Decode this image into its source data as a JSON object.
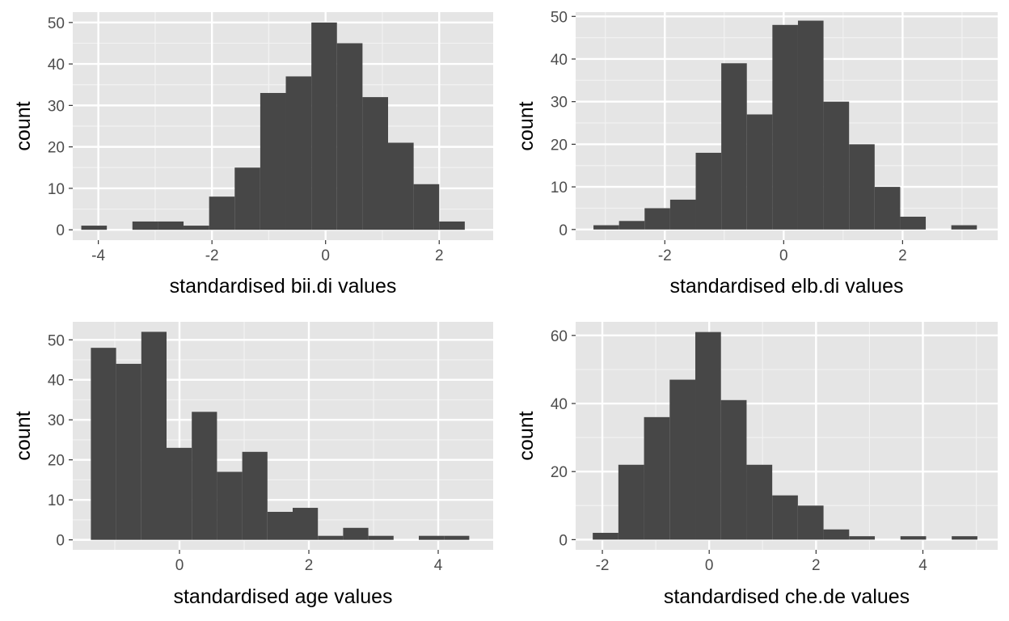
{
  "style": {
    "panel_background": "#e5e5e5",
    "grid_major": "#ffffff",
    "grid_minor": "#f2f2f2",
    "bar_fill": "#474747",
    "tick_color": "#333333",
    "tick_label_color": "#4d4d4d"
  },
  "chart_data": [
    {
      "type": "bar",
      "subtype": "histogram",
      "xlabel": "standardised bii.di values",
      "ylabel": "count",
      "xlim": [
        -4.45,
        2.95
      ],
      "ylim": [
        -2.5,
        52.5
      ],
      "x_ticks": [
        -4,
        -2,
        0,
        2
      ],
      "y_ticks": [
        0,
        10,
        20,
        30,
        40,
        50
      ],
      "bin_width": 0.45,
      "bins": [
        {
          "x0": -4.3,
          "x1": -3.85,
          "count": 1
        },
        {
          "x0": -3.85,
          "x1": -3.4,
          "count": 0
        },
        {
          "x0": -3.4,
          "x1": -2.95,
          "count": 2
        },
        {
          "x0": -2.95,
          "x1": -2.5,
          "count": 2
        },
        {
          "x0": -2.5,
          "x1": -2.05,
          "count": 1
        },
        {
          "x0": -2.05,
          "x1": -1.6,
          "count": 8
        },
        {
          "x0": -1.6,
          "x1": -1.15,
          "count": 15
        },
        {
          "x0": -1.15,
          "x1": -0.7,
          "count": 33
        },
        {
          "x0": -0.7,
          "x1": -0.25,
          "count": 37
        },
        {
          "x0": -0.25,
          "x1": 0.2,
          "count": 50
        },
        {
          "x0": 0.2,
          "x1": 0.65,
          "count": 45
        },
        {
          "x0": 0.65,
          "x1": 1.1,
          "count": 32
        },
        {
          "x0": 1.1,
          "x1": 1.55,
          "count": 21
        },
        {
          "x0": 1.55,
          "x1": 2.0,
          "count": 11
        },
        {
          "x0": 2.0,
          "x1": 2.45,
          "count": 2
        }
      ]
    },
    {
      "type": "bar",
      "subtype": "histogram",
      "xlabel": "standardised elb.di values",
      "ylabel": "count",
      "xlim": [
        -3.5,
        3.6
      ],
      "ylim": [
        -2.5,
        51
      ],
      "x_ticks": [
        -2,
        0,
        2
      ],
      "y_ticks": [
        0,
        10,
        20,
        30,
        40,
        50
      ],
      "bin_width": 0.43,
      "bins": [
        {
          "x0": -3.2,
          "x1": -2.77,
          "count": 1
        },
        {
          "x0": -2.77,
          "x1": -2.34,
          "count": 2
        },
        {
          "x0": -2.34,
          "x1": -1.91,
          "count": 5
        },
        {
          "x0": -1.91,
          "x1": -1.48,
          "count": 7
        },
        {
          "x0": -1.48,
          "x1": -1.05,
          "count": 18
        },
        {
          "x0": -1.05,
          "x1": -0.62,
          "count": 39
        },
        {
          "x0": -0.62,
          "x1": -0.19,
          "count": 27
        },
        {
          "x0": -0.19,
          "x1": 0.24,
          "count": 48
        },
        {
          "x0": 0.24,
          "x1": 0.67,
          "count": 49
        },
        {
          "x0": 0.67,
          "x1": 1.1,
          "count": 30
        },
        {
          "x0": 1.1,
          "x1": 1.53,
          "count": 20
        },
        {
          "x0": 1.53,
          "x1": 1.96,
          "count": 10
        },
        {
          "x0": 1.96,
          "x1": 2.39,
          "count": 3
        },
        {
          "x0": 2.39,
          "x1": 2.82,
          "count": 0
        },
        {
          "x0": 2.82,
          "x1": 3.25,
          "count": 1
        }
      ]
    },
    {
      "type": "bar",
      "subtype": "histogram",
      "xlabel": "standardised age values",
      "ylabel": "count",
      "xlim": [
        -1.65,
        4.85
      ],
      "ylim": [
        -2.5,
        54.5
      ],
      "x_ticks": [
        0,
        2,
        4
      ],
      "y_ticks": [
        0,
        10,
        20,
        30,
        40,
        50
      ],
      "bin_width": 0.39,
      "bins": [
        {
          "x0": -1.37,
          "x1": -0.98,
          "count": 48
        },
        {
          "x0": -0.98,
          "x1": -0.59,
          "count": 44
        },
        {
          "x0": -0.59,
          "x1": -0.2,
          "count": 52
        },
        {
          "x0": -0.2,
          "x1": 0.19,
          "count": 23
        },
        {
          "x0": 0.19,
          "x1": 0.58,
          "count": 32
        },
        {
          "x0": 0.58,
          "x1": 0.97,
          "count": 17
        },
        {
          "x0": 0.97,
          "x1": 1.36,
          "count": 22
        },
        {
          "x0": 1.36,
          "x1": 1.75,
          "count": 7
        },
        {
          "x0": 1.75,
          "x1": 2.14,
          "count": 8
        },
        {
          "x0": 2.14,
          "x1": 2.53,
          "count": 1
        },
        {
          "x0": 2.53,
          "x1": 2.92,
          "count": 3
        },
        {
          "x0": 2.92,
          "x1": 3.31,
          "count": 1
        },
        {
          "x0": 3.31,
          "x1": 3.7,
          "count": 0
        },
        {
          "x0": 3.7,
          "x1": 4.09,
          "count": 1
        },
        {
          "x0": 4.09,
          "x1": 4.48,
          "count": 1
        }
      ]
    },
    {
      "type": "bar",
      "subtype": "histogram",
      "xlabel": "standardised che.de values",
      "ylabel": "count",
      "xlim": [
        -2.5,
        5.4
      ],
      "ylim": [
        -3,
        64
      ],
      "x_ticks": [
        -2,
        0,
        2,
        4
      ],
      "y_ticks": [
        0,
        20,
        40,
        60
      ],
      "bin_width": 0.48,
      "bins": [
        {
          "x0": -2.18,
          "x1": -1.7,
          "count": 2
        },
        {
          "x0": -1.7,
          "x1": -1.22,
          "count": 22
        },
        {
          "x0": -1.22,
          "x1": -0.74,
          "count": 36
        },
        {
          "x0": -0.74,
          "x1": -0.26,
          "count": 47
        },
        {
          "x0": -0.26,
          "x1": 0.22,
          "count": 61
        },
        {
          "x0": 0.22,
          "x1": 0.7,
          "count": 41
        },
        {
          "x0": 0.7,
          "x1": 1.18,
          "count": 22
        },
        {
          "x0": 1.18,
          "x1": 1.66,
          "count": 13
        },
        {
          "x0": 1.66,
          "x1": 2.14,
          "count": 10
        },
        {
          "x0": 2.14,
          "x1": 2.62,
          "count": 3
        },
        {
          "x0": 2.62,
          "x1": 3.1,
          "count": 1
        },
        {
          "x0": 3.1,
          "x1": 3.58,
          "count": 0
        },
        {
          "x0": 3.58,
          "x1": 4.06,
          "count": 1
        },
        {
          "x0": 4.06,
          "x1": 4.54,
          "count": 0
        },
        {
          "x0": 4.54,
          "x1": 5.02,
          "count": 1
        }
      ]
    }
  ]
}
